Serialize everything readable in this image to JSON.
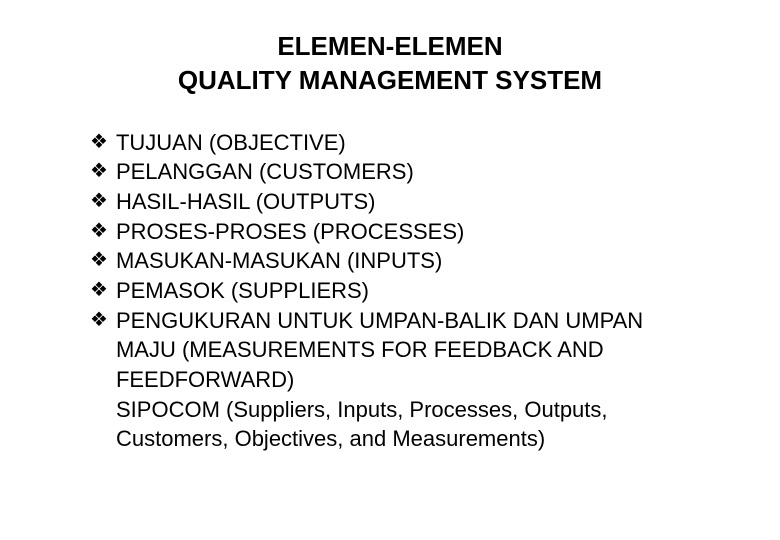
{
  "title_line1": "ELEMEN-ELEMEN",
  "title_line2": "QUALITY MANAGEMENT SYSTEM",
  "items": [
    "TUJUAN (OBJECTIVE)",
    "PELANGGAN (CUSTOMERS)",
    "HASIL-HASIL (OUTPUTS)",
    "PROSES-PROSES (PROCESSES)",
    "MASUKAN-MASUKAN (INPUTS)",
    "PEMASOK (SUPPLIERS)",
    "PENGUKURAN UNTUK UMPAN-BALIK DAN UMPAN MAJU (MEASUREMENTS FOR FEEDBACK AND FEEDFORWARD)"
  ],
  "continuation": "SIPOCOM (Suppliers, Inputs, Processes, Outputs, Customers, Objectives, and Measurements)",
  "bullet_glyph": "❖",
  "colors": {
    "background": "#ffffff",
    "text": "#000000",
    "bullet": "#000000"
  },
  "typography": {
    "title_fontsize": 26,
    "title_weight": "bold",
    "body_fontsize": 22,
    "font_family": "Arial"
  }
}
